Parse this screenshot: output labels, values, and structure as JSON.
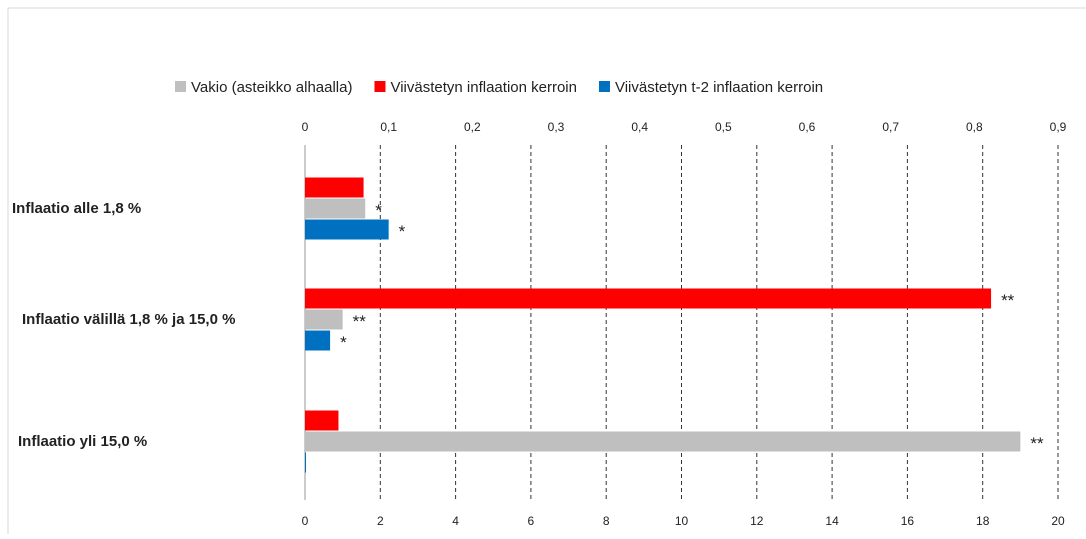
{
  "chart_data": {
    "type": "bar",
    "orientation": "horizontal",
    "categories": [
      "Inflaatio alle 1,8 %",
      "Inflaatio välillä 1,8 % ja 15,0 %",
      "Inflaatio yli 15,0 %"
    ],
    "series": [
      {
        "name": "Viivästetyn inflaation kerroin",
        "color": "#ff0000",
        "axis": "x2",
        "values": [
          0.07,
          0.82,
          0.04
        ],
        "significance": [
          null,
          "**",
          null
        ]
      },
      {
        "name": "Vakio (asteikko alhaalla)",
        "color": "#bfbfbf",
        "axis": "x",
        "values": [
          1.6,
          1.0,
          19.0
        ],
        "significance": [
          "*",
          "**",
          "**"
        ]
      },
      {
        "name": "Viivästetyn t-2 inflaation kerroin",
        "color": "#0070c0",
        "axis": "x2",
        "values": [
          0.1,
          0.03,
          0.001
        ],
        "significance": [
          "*",
          "*",
          null
        ]
      }
    ],
    "legend_order": [
      1,
      0,
      2
    ],
    "xlim": [
      0,
      20
    ],
    "xticks": [
      0,
      2,
      4,
      6,
      8,
      10,
      12,
      14,
      16,
      18,
      20
    ],
    "x2lim": [
      0,
      0.9
    ],
    "x2ticks": [
      0,
      {
        "value": 0.1,
        "label": "0,1"
      },
      {
        "value": 0.2,
        "label": "0,2"
      },
      {
        "value": 0.3,
        "label": "0,3"
      },
      {
        "value": 0.4,
        "label": "0,4"
      },
      {
        "value": 0.5,
        "label": "0,5"
      },
      {
        "value": 0.6,
        "label": "0,6"
      },
      {
        "value": 0.7,
        "label": "0,7"
      },
      {
        "value": 0.8,
        "label": "0,8"
      },
      {
        "value": 0.9,
        "label": "0,9"
      }
    ],
    "grid": true
  }
}
